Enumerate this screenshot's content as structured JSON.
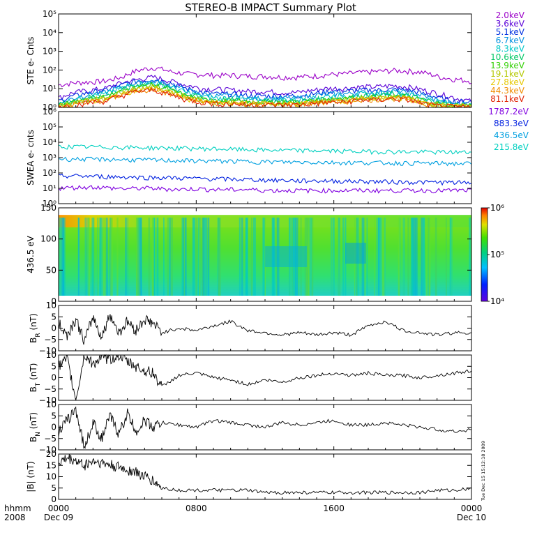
{
  "title": "STEREO-B IMPACT Summary Plot",
  "timestamp": "Tue Dec 15 15:12:18 2009",
  "x_axis": {
    "label_lines": [
      "hhmm",
      "2008"
    ],
    "ticks": [
      {
        "t": 0,
        "top": "0000",
        "bottom": "Dec 09"
      },
      {
        "t": 8,
        "top": "0800",
        "bottom": ""
      },
      {
        "t": 16,
        "top": "1600",
        "bottom": ""
      },
      {
        "t": 24,
        "top": "0000",
        "bottom": "Dec 10"
      }
    ]
  },
  "chart_data": [
    {
      "type": "line",
      "ylabel": "STE e- Cnts",
      "yscale": "log",
      "ylim": [
        1,
        100000
      ],
      "yticks": [
        "10⁰",
        "10¹",
        "10²",
        "10³",
        "10⁴",
        "10⁵"
      ],
      "series": [
        {
          "name": "2.0keV",
          "color": "#9b00c8",
          "values": [
            15,
            20,
            22,
            25,
            40,
            90,
            130,
            80,
            60,
            55,
            50,
            50,
            45,
            45,
            40,
            40,
            45,
            55,
            60,
            70,
            80,
            90,
            85,
            70,
            40,
            30,
            25
          ]
        },
        {
          "name": "3.6keV",
          "color": "#5a00d8",
          "values": [
            3,
            6,
            8,
            10,
            20,
            30,
            40,
            25,
            15,
            10,
            9,
            8,
            7,
            7,
            6,
            6,
            8,
            10,
            10,
            12,
            12,
            14,
            12,
            8,
            5,
            3,
            2
          ]
        },
        {
          "name": "5.1keV",
          "color": "#0030e0",
          "values": [
            2,
            4,
            6,
            8,
            15,
            25,
            30,
            20,
            10,
            6,
            5,
            5,
            4,
            4,
            4,
            4,
            5,
            7,
            7,
            8,
            8,
            9,
            8,
            5,
            3,
            2,
            2
          ]
        },
        {
          "name": "6.7keV",
          "color": "#0090e0",
          "values": [
            1.5,
            3,
            5,
            6,
            12,
            20,
            25,
            15,
            8,
            5,
            4,
            4,
            3,
            3,
            3,
            3,
            4,
            5,
            5,
            6,
            6,
            7,
            6,
            4,
            2,
            1.5,
            1.5
          ]
        },
        {
          "name": "8.3keV",
          "color": "#00c8c8",
          "values": [
            1.4,
            2.5,
            4,
            5,
            10,
            18,
            20,
            12,
            6,
            4,
            3,
            3,
            2.5,
            2.5,
            2.5,
            2.5,
            3,
            4,
            4,
            5,
            5,
            6,
            5,
            3,
            2,
            1.4,
            1.4
          ]
        },
        {
          "name": "10.6keV",
          "color": "#00c864",
          "values": [
            1.3,
            2,
            3.5,
            4,
            8,
            15,
            18,
            10,
            5,
            3,
            2.5,
            2.5,
            2,
            2,
            2,
            2,
            2.5,
            3,
            3,
            4,
            4,
            5,
            4,
            2.5,
            1.6,
            1.3,
            1.3
          ]
        },
        {
          "name": "13.9keV",
          "color": "#30d000",
          "values": [
            1.2,
            1.8,
            3,
            3.5,
            7,
            12,
            15,
            8,
            4,
            2.5,
            2,
            2,
            1.8,
            1.8,
            1.8,
            1.8,
            2,
            2.5,
            2.5,
            3.5,
            3.5,
            4,
            3.5,
            2,
            1.5,
            1.2,
            1.2
          ]
        },
        {
          "name": "19.1keV",
          "color": "#b4c800",
          "values": [
            1.1,
            1.6,
            2.5,
            3,
            6,
            10,
            12,
            7,
            3.5,
            2.2,
            1.8,
            1.8,
            1.6,
            1.6,
            1.6,
            1.6,
            1.8,
            2.2,
            2.2,
            3,
            3,
            3.5,
            3,
            1.8,
            1.3,
            1.1,
            1.1
          ]
        },
        {
          "name": "27.8keV",
          "color": "#e6c800",
          "values": [
            1.1,
            1.5,
            2.2,
            2.5,
            5,
            9,
            10,
            6,
            3,
            2,
            1.7,
            1.7,
            1.5,
            1.5,
            1.5,
            1.5,
            1.7,
            2,
            2,
            2.8,
            2.8,
            3.2,
            2.8,
            1.7,
            1.2,
            1.1,
            1.1
          ]
        },
        {
          "name": "44.3keV",
          "color": "#f08c00",
          "values": [
            1.05,
            1.4,
            2,
            2.3,
            4.5,
            8,
            9,
            5,
            2.8,
            1.9,
            1.6,
            1.6,
            1.4,
            1.4,
            1.4,
            1.4,
            1.6,
            1.9,
            1.9,
            2.6,
            2.6,
            3,
            2.6,
            1.6,
            1.2,
            1.05,
            1.05
          ]
        },
        {
          "name": "81.1keV",
          "color": "#e02000",
          "values": [
            1,
            1.3,
            1.8,
            2.1,
            4,
            7,
            8,
            4.5,
            2.5,
            1.8,
            1.5,
            1.5,
            1.3,
            1.3,
            1.3,
            1.3,
            1.5,
            1.8,
            1.8,
            2.4,
            2.4,
            2.8,
            2.4,
            1.5,
            1.1,
            1,
            1
          ]
        }
      ]
    },
    {
      "type": "line",
      "ylabel": "SWEA e- cnts",
      "yscale": "log",
      "ylim": [
        1,
        1000000
      ],
      "yticks": [
        "10⁰",
        "10¹",
        "10²",
        "10³",
        "10⁴",
        "10⁵",
        "10⁶"
      ],
      "series": [
        {
          "name": "1787.2eV",
          "color": "#8000e0",
          "values": [
            10,
            11,
            12,
            10,
            9,
            10,
            9,
            8,
            9,
            8,
            8,
            8,
            7,
            7,
            7,
            7,
            7,
            7,
            7,
            7,
            7,
            7,
            7,
            7,
            7
          ]
        },
        {
          "name": "883.3eV",
          "color": "#0020e0",
          "values": [
            60,
            62,
            58,
            55,
            52,
            50,
            48,
            45,
            42,
            40,
            38,
            36,
            34,
            32,
            30,
            30,
            29,
            28,
            27,
            26,
            25,
            24,
            24,
            23,
            22
          ]
        },
        {
          "name": "436.5eV",
          "color": "#00a0e0",
          "values": [
            800,
            780,
            760,
            740,
            700,
            680,
            650,
            620,
            600,
            580,
            560,
            540,
            520,
            500,
            490,
            480,
            470,
            460,
            450,
            440,
            430,
            420,
            410,
            400,
            390
          ]
        },
        {
          "name": "215.8eV",
          "color": "#00d0c0",
          "values": [
            5000,
            4900,
            4800,
            4600,
            4500,
            4300,
            4100,
            4000,
            3800,
            3600,
            3400,
            3200,
            3000,
            2900,
            2800,
            2700,
            2600,
            2500,
            2400,
            2400,
            2300,
            2300,
            2200,
            2200,
            2100
          ]
        }
      ]
    },
    {
      "type": "heatmap",
      "ylabel": "436.5 eV",
      "ylim": [
        0,
        180
      ],
      "yticks": [
        "0",
        "50",
        "100",
        "150"
      ],
      "colorbar": {
        "scale": "log",
        "range": [
          10000,
          1000000
        ],
        "ticks": [
          "10⁶",
          "10⁵",
          "10⁴"
        ]
      }
    },
    {
      "type": "line",
      "ylabel": "B",
      "ylabel_sub": "R",
      "ylabel_unit": "(nT)",
      "ylim": [
        -10,
        10
      ],
      "yticks": [
        "−10",
        "−5",
        "0",
        "5",
        "10"
      ],
      "x": [
        0,
        0.5,
        1,
        1.5,
        2,
        2.5,
        3,
        3.5,
        4,
        4.5,
        5,
        5.5,
        6,
        7,
        8,
        9,
        10,
        11,
        12,
        13,
        14,
        15,
        16,
        17,
        18,
        19,
        20,
        21,
        22,
        23,
        24
      ],
      "values": [
        2,
        -3,
        4,
        -6,
        5,
        -4,
        6,
        -2,
        3,
        -1,
        4,
        2,
        -2,
        0,
        -1,
        1,
        3,
        -1,
        -2,
        -3,
        -2,
        -3,
        -2,
        -3,
        1,
        3,
        -1,
        -2,
        -3,
        -2,
        -2
      ]
    },
    {
      "type": "line",
      "ylabel": "B",
      "ylabel_sub": "T",
      "ylabel_unit": "(nT)",
      "ylim": [
        -10,
        10
      ],
      "yticks": [
        "−10",
        "−5",
        "0",
        "5",
        "10"
      ],
      "x": [
        0,
        0.5,
        1,
        1.5,
        2,
        2.5,
        3,
        3.5,
        4,
        4.5,
        5,
        5.5,
        6,
        7,
        8,
        9,
        10,
        11,
        12,
        13,
        14,
        15,
        16,
        17,
        18,
        19,
        20,
        21,
        22,
        23,
        24
      ],
      "values": [
        5,
        8,
        -10,
        10,
        6,
        9,
        8,
        10,
        7,
        5,
        3,
        2,
        -4,
        1,
        2,
        0,
        -1,
        -3,
        -1,
        -2,
        0,
        1,
        2,
        1,
        2,
        1,
        1,
        0,
        1,
        2,
        3
      ]
    },
    {
      "type": "line",
      "ylabel": "B",
      "ylabel_sub": "N",
      "ylabel_unit": "(nT)",
      "ylim": [
        -10,
        10
      ],
      "yticks": [
        "−10",
        "−5",
        "0",
        "5",
        "10"
      ],
      "x": [
        0,
        0.5,
        1,
        1.5,
        2,
        2.5,
        3,
        3.5,
        4,
        4.5,
        5,
        5.5,
        6,
        7,
        8,
        9,
        10,
        11,
        12,
        13,
        14,
        15,
        16,
        17,
        18,
        19,
        20,
        21,
        22,
        23,
        24
      ],
      "values": [
        -2,
        3,
        8,
        -9,
        2,
        -5,
        5,
        -3,
        6,
        -2,
        3,
        0,
        2,
        1,
        0,
        3,
        2,
        1,
        0,
        2,
        1,
        2,
        3,
        1,
        1,
        2,
        1,
        0,
        -1,
        -2,
        -1
      ]
    },
    {
      "type": "line",
      "ylabel": "|B|",
      "ylabel_unit": "(nT)",
      "ylim": [
        0,
        20
      ],
      "yticks": [
        "0",
        "5",
        "10",
        "15",
        "20"
      ],
      "x": [
        0,
        0.5,
        1,
        1.5,
        2,
        2.5,
        3,
        3.5,
        4,
        4.5,
        5,
        5.5,
        6,
        7,
        8,
        9,
        10,
        11,
        12,
        13,
        14,
        15,
        16,
        17,
        18,
        19,
        20,
        21,
        22,
        23,
        24
      ],
      "values": [
        16,
        18,
        17,
        15,
        17,
        16,
        15,
        14,
        13,
        12,
        10,
        8,
        5,
        4,
        4,
        4,
        4,
        4,
        3,
        3,
        3,
        3,
        3,
        3,
        3,
        3,
        3,
        3,
        4,
        4,
        5
      ]
    }
  ]
}
